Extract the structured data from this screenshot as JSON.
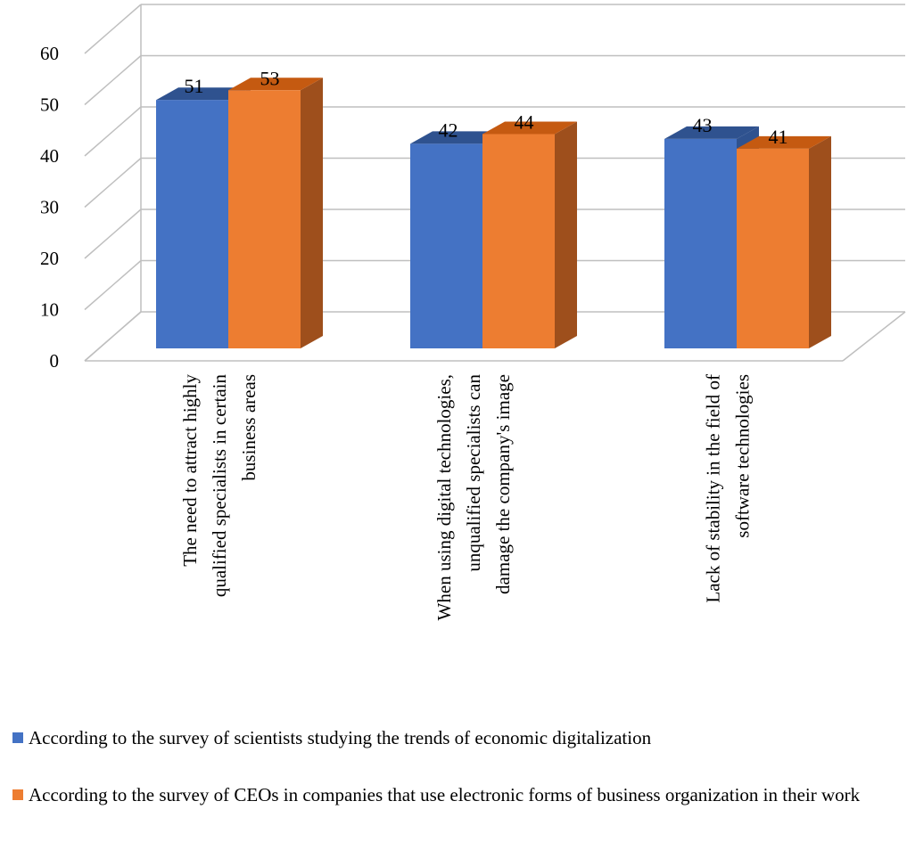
{
  "chart_data": {
    "type": "bar",
    "categories": [
      [
        "The need to attract highly",
        "qualified specialists in certain",
        "business areas"
      ],
      [
        "When using digital technologies,",
        "unqualified specialists can",
        "damage the company's image"
      ],
      [
        "Lack of stability in the field of",
        "software technologies"
      ]
    ],
    "series": [
      {
        "name": "According to the survey of scientists studying the trends of economic digitalization",
        "values": [
          51,
          42,
          43
        ],
        "color": "#4472C4",
        "top_color": "#2F528F"
      },
      {
        "name": "According to the survey of CEOs in companies that use electronic forms of business organization in their work",
        "values": [
          53,
          44,
          41
        ],
        "color": "#ED7D31",
        "side_color": "#9E4F1C",
        "top_color": "#C55A11"
      }
    ],
    "ylim": [
      0,
      60
    ],
    "yticks": [
      "0",
      "10",
      "20",
      "30",
      "40",
      "50",
      "60"
    ],
    "grid": true,
    "legend_position": "bottom",
    "style": "3d-clustered-column"
  }
}
